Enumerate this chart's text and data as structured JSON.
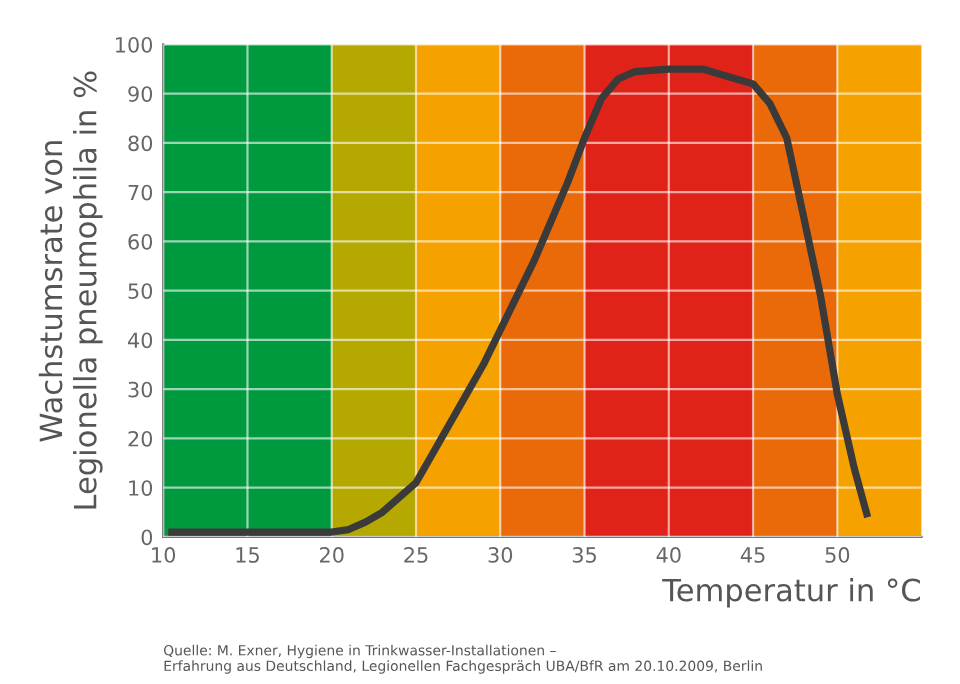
{
  "chart_data": {
    "type": "line",
    "xlabel": "Temperatur in °C",
    "ylabel": "Wachstumsrate von\nLegionella pneumophila in %",
    "annotations": [
      "Quelle: M. Exner, Hygiene in Trinkwasser-Installationen –\nErfahrung aus Deutschland, Legionellen Fachgespräch UBA/BfR am 20.10.2009, Berlin"
    ],
    "series": [
      {
        "color": "#3a3a3a",
        "x": [
          10.3,
          15,
          20,
          21,
          22,
          23,
          24,
          25,
          26,
          27,
          28,
          29,
          30,
          31,
          32,
          33,
          34,
          35,
          36,
          37,
          38,
          40,
          42,
          44,
          45,
          46,
          47,
          48,
          49,
          50,
          51,
          51.8
        ],
        "values": [
          1,
          1,
          1,
          1.5,
          3,
          5,
          8,
          11,
          17,
          23,
          29,
          35,
          42,
          49,
          56,
          64,
          72,
          81,
          89,
          93,
          94.5,
          95,
          95,
          93,
          92,
          88,
          81,
          65,
          49,
          29,
          14,
          4
        ]
      }
    ],
    "bands": [
      {
        "axis": "x",
        "from": 10,
        "to": 20,
        "color": "#009a3e"
      },
      {
        "axis": "x",
        "from": 20,
        "to": 25,
        "color": "#b5a800"
      },
      {
        "axis": "x",
        "from": 25,
        "to": 30,
        "color": "#f5a200"
      },
      {
        "axis": "x",
        "from": 30,
        "to": 35,
        "color": "#ea6a0a"
      },
      {
        "axis": "x",
        "from": 35,
        "to": 45,
        "color": "#e02318"
      },
      {
        "axis": "x",
        "from": 45,
        "to": 50,
        "color": "#ea6a0a"
      },
      {
        "axis": "x",
        "from": 50,
        "to": 55,
        "color": "#f5a200"
      }
    ],
    "xlim": [
      10,
      55
    ],
    "ylim": [
      0,
      100
    ],
    "xticks": [
      10,
      15,
      20,
      25,
      30,
      35,
      40,
      45,
      50
    ],
    "yticks": [
      0,
      10,
      20,
      30,
      40,
      50,
      60,
      70,
      80,
      90,
      100
    ],
    "grid": true,
    "line_style": "solid",
    "marker": "none"
  }
}
